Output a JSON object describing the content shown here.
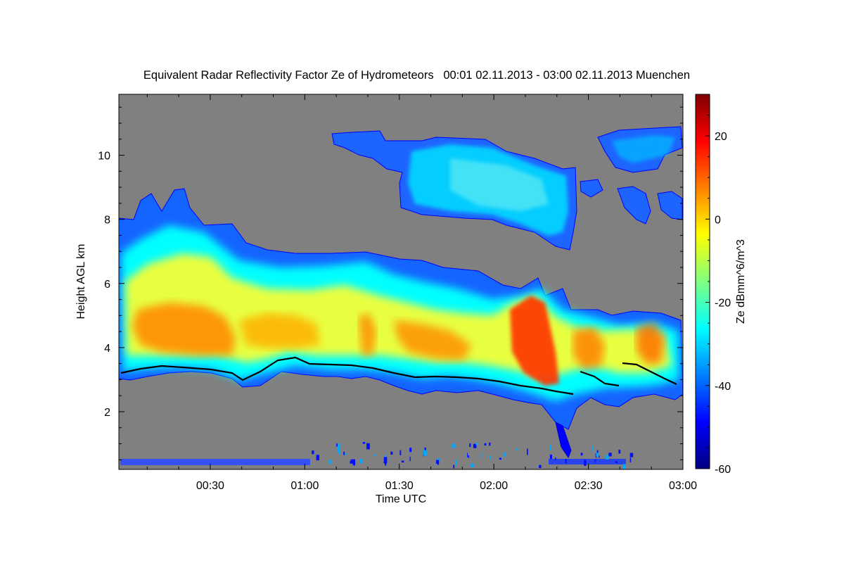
{
  "chart_data": {
    "type": "heatmap",
    "title": "Equivalent Radar Reflectivity Factor Ze of Hydrometeors   00:01 02.11.2013 - 03:00 02.11.2013 Muenchen",
    "xlabel": "Time UTC",
    "ylabel": "Height AGL km",
    "colorbar_label": "Ze dBmm^6/m^3",
    "x_range": [
      "00:01",
      "03:00"
    ],
    "x_ticks": [
      "00:30",
      "01:00",
      "01:30",
      "02:00",
      "02:30",
      "03:00"
    ],
    "y_range": [
      0.2,
      11.9
    ],
    "y_ticks": [
      "2",
      "4",
      "6",
      "8",
      "10"
    ],
    "z_range": [
      -60,
      30
    ],
    "colorbar_ticks": [
      "20",
      "0",
      "-20",
      "-40",
      "-60"
    ],
    "colormap": [
      "#000080",
      "#0000ff",
      "#0080ff",
      "#00ffff",
      "#80ff80",
      "#ffff00",
      "#ff8000",
      "#ff0000",
      "#800000"
    ],
    "background_color": "#808080",
    "grid": false,
    "cloud_layers": [
      {
        "name": "lower",
        "time_min": [
          1,
          180
        ],
        "base_km": [
          3.1,
          3.2,
          3.4,
          3.5,
          3.0,
          3.3,
          3.5,
          3.4,
          3.3,
          3.2,
          3.0,
          2.6,
          2.8,
          2.6,
          2.5
        ],
        "top_km": [
          7.0,
          8.8,
          7.8,
          7.0,
          6.6,
          6.8,
          6.2,
          6.4,
          5.6,
          5.5,
          5.3,
          5.2,
          5.0,
          5.0,
          4.9
        ],
        "peak_dbz": 15
      },
      {
        "name": "upper",
        "time_min": [
          70,
          180
        ],
        "base_km": [
          9.5,
          8.2,
          7.6,
          7.3,
          8.8,
          9.8
        ],
        "top_km": [
          10.7,
          10.5,
          10.0,
          9.5,
          10.8,
          10.9
        ],
        "peak_dbz": -30
      }
    ]
  }
}
